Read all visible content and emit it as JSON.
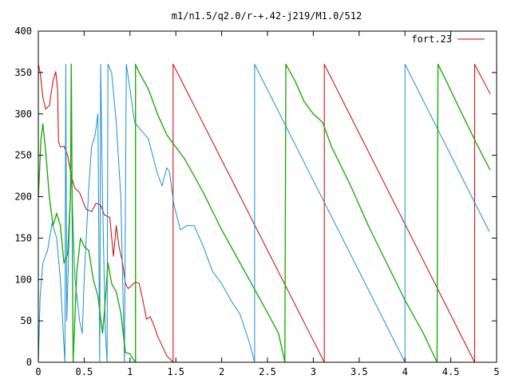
{
  "chart_data": {
    "type": "line",
    "title": "m1/n1.5/q2.0/r-+.42-j219/M1.0/512",
    "xlabel": "",
    "ylabel": "",
    "xlim": [
      0,
      5
    ],
    "ylim": [
      0,
      400
    ],
    "x_ticks": [
      "0",
      "0.5",
      "1",
      "1.5",
      "2",
      "2.5",
      "3",
      "3.5",
      "4",
      "4.5",
      "5"
    ],
    "y_ticks": [
      "0",
      "50",
      "100",
      "150",
      "200",
      "250",
      "300",
      "350",
      "400"
    ],
    "grid": false,
    "legend_position": "top-right",
    "legend_entries": [
      {
        "label": "fort.23",
        "color": "#cc0000"
      }
    ],
    "series": [
      {
        "name": "fort.23",
        "color": "#cc0000",
        "points": [
          [
            0.0,
            360
          ],
          [
            0.02,
            350
          ],
          [
            0.05,
            320
          ],
          [
            0.08,
            306
          ],
          [
            0.12,
            310
          ],
          [
            0.16,
            340
          ],
          [
            0.19,
            351
          ],
          [
            0.21,
            330
          ],
          [
            0.22,
            266
          ],
          [
            0.24,
            260
          ],
          [
            0.28,
            261
          ],
          [
            0.32,
            250
          ],
          [
            0.36,
            225
          ],
          [
            0.4,
            210
          ],
          [
            0.45,
            205
          ],
          [
            0.52,
            185
          ],
          [
            0.58,
            182
          ],
          [
            0.63,
            192
          ],
          [
            0.68,
            190
          ],
          [
            0.72,
            178
          ],
          [
            0.78,
            175
          ],
          [
            0.82,
            128
          ],
          [
            0.85,
            165
          ],
          [
            0.88,
            140
          ],
          [
            0.92,
            120
          ],
          [
            0.95,
            95
          ],
          [
            0.98,
            89
          ],
          [
            1.02,
            93
          ],
          [
            1.06,
            97
          ],
          [
            1.1,
            95
          ],
          [
            1.14,
            75
          ],
          [
            1.18,
            52
          ],
          [
            1.22,
            55
          ],
          [
            1.26,
            45
          ],
          [
            1.3,
            32
          ],
          [
            1.35,
            20
          ],
          [
            1.4,
            8
          ],
          [
            1.47,
            0
          ],
          [
            1.47,
            360
          ],
          [
            3.12,
            0
          ],
          [
            3.12,
            360
          ],
          [
            4.76,
            0
          ],
          [
            4.76,
            360
          ],
          [
            4.93,
            324
          ]
        ]
      },
      {
        "color": "#1a8fd0",
        "points": [
          [
            0.0,
            0
          ],
          [
            0.02,
            80
          ],
          [
            0.05,
            120
          ],
          [
            0.1,
            135
          ],
          [
            0.15,
            168
          ],
          [
            0.2,
            150
          ],
          [
            0.24,
            100
          ],
          [
            0.27,
            40
          ],
          [
            0.29,
            0
          ],
          [
            0.3,
            360
          ],
          [
            0.31,
            50
          ],
          [
            0.33,
            130
          ],
          [
            0.36,
            230
          ],
          [
            0.4,
            100
          ],
          [
            0.45,
            50
          ],
          [
            0.48,
            35
          ],
          [
            0.5,
            100
          ],
          [
            0.55,
            210
          ],
          [
            0.58,
            260
          ],
          [
            0.62,
            275
          ],
          [
            0.65,
            300
          ],
          [
            0.67,
            0
          ],
          [
            0.68,
            360
          ],
          [
            0.7,
            200
          ],
          [
            0.73,
            40
          ],
          [
            0.75,
            0
          ],
          [
            0.76,
            360
          ],
          [
            0.8,
            350
          ],
          [
            0.85,
            290
          ],
          [
            0.9,
            200
          ],
          [
            0.94,
            0
          ],
          [
            0.96,
            360
          ],
          [
            1.0,
            330
          ],
          [
            1.05,
            290
          ],
          [
            1.1,
            283
          ],
          [
            1.2,
            270
          ],
          [
            1.3,
            228
          ],
          [
            1.35,
            213
          ],
          [
            1.4,
            235
          ],
          [
            1.43,
            230
          ],
          [
            1.48,
            190
          ],
          [
            1.55,
            160
          ],
          [
            1.62,
            165
          ],
          [
            1.7,
            165
          ],
          [
            1.8,
            140
          ],
          [
            1.9,
            110
          ],
          [
            2.0,
            95
          ],
          [
            2.1,
            75
          ],
          [
            2.2,
            58
          ],
          [
            2.3,
            25
          ],
          [
            2.36,
            0
          ],
          [
            2.36,
            360
          ],
          [
            4.0,
            0
          ],
          [
            4.0,
            360
          ],
          [
            4.92,
            158
          ]
        ]
      },
      {
        "color": "#22aa11",
        "points": [
          [
            0.0,
            200
          ],
          [
            0.03,
            270
          ],
          [
            0.05,
            288
          ],
          [
            0.08,
            255
          ],
          [
            0.12,
            200
          ],
          [
            0.16,
            165
          ],
          [
            0.2,
            180
          ],
          [
            0.24,
            165
          ],
          [
            0.28,
            120
          ],
          [
            0.32,
            130
          ],
          [
            0.35,
            200
          ],
          [
            0.36,
            360
          ],
          [
            0.38,
            0
          ],
          [
            0.42,
            110
          ],
          [
            0.46,
            150
          ],
          [
            0.5,
            140
          ],
          [
            0.55,
            135
          ],
          [
            0.6,
            100
          ],
          [
            0.65,
            80
          ],
          [
            0.7,
            35
          ],
          [
            0.72,
            60
          ],
          [
            0.76,
            120
          ],
          [
            0.8,
            95
          ],
          [
            0.85,
            85
          ],
          [
            0.9,
            60
          ],
          [
            0.95,
            12
          ],
          [
            1.0,
            10
          ],
          [
            1.04,
            3
          ],
          [
            1.06,
            0
          ],
          [
            1.06,
            360
          ],
          [
            1.1,
            350
          ],
          [
            1.2,
            330
          ],
          [
            1.3,
            300
          ],
          [
            1.4,
            275
          ],
          [
            1.6,
            245
          ],
          [
            1.8,
            205
          ],
          [
            2.0,
            160
          ],
          [
            2.2,
            120
          ],
          [
            2.4,
            80
          ],
          [
            2.5,
            60
          ],
          [
            2.62,
            35
          ],
          [
            2.69,
            0
          ],
          [
            2.7,
            360
          ],
          [
            2.8,
            340
          ],
          [
            2.9,
            315
          ],
          [
            3.0,
            300
          ],
          [
            3.1,
            290
          ],
          [
            3.2,
            260
          ],
          [
            3.4,
            215
          ],
          [
            3.6,
            165
          ],
          [
            3.8,
            120
          ],
          [
            4.0,
            75
          ],
          [
            4.2,
            35
          ],
          [
            4.35,
            0
          ],
          [
            4.36,
            360
          ],
          [
            4.45,
            340
          ],
          [
            4.6,
            305
          ],
          [
            4.8,
            260
          ],
          [
            4.93,
            232
          ]
        ]
      }
    ]
  }
}
